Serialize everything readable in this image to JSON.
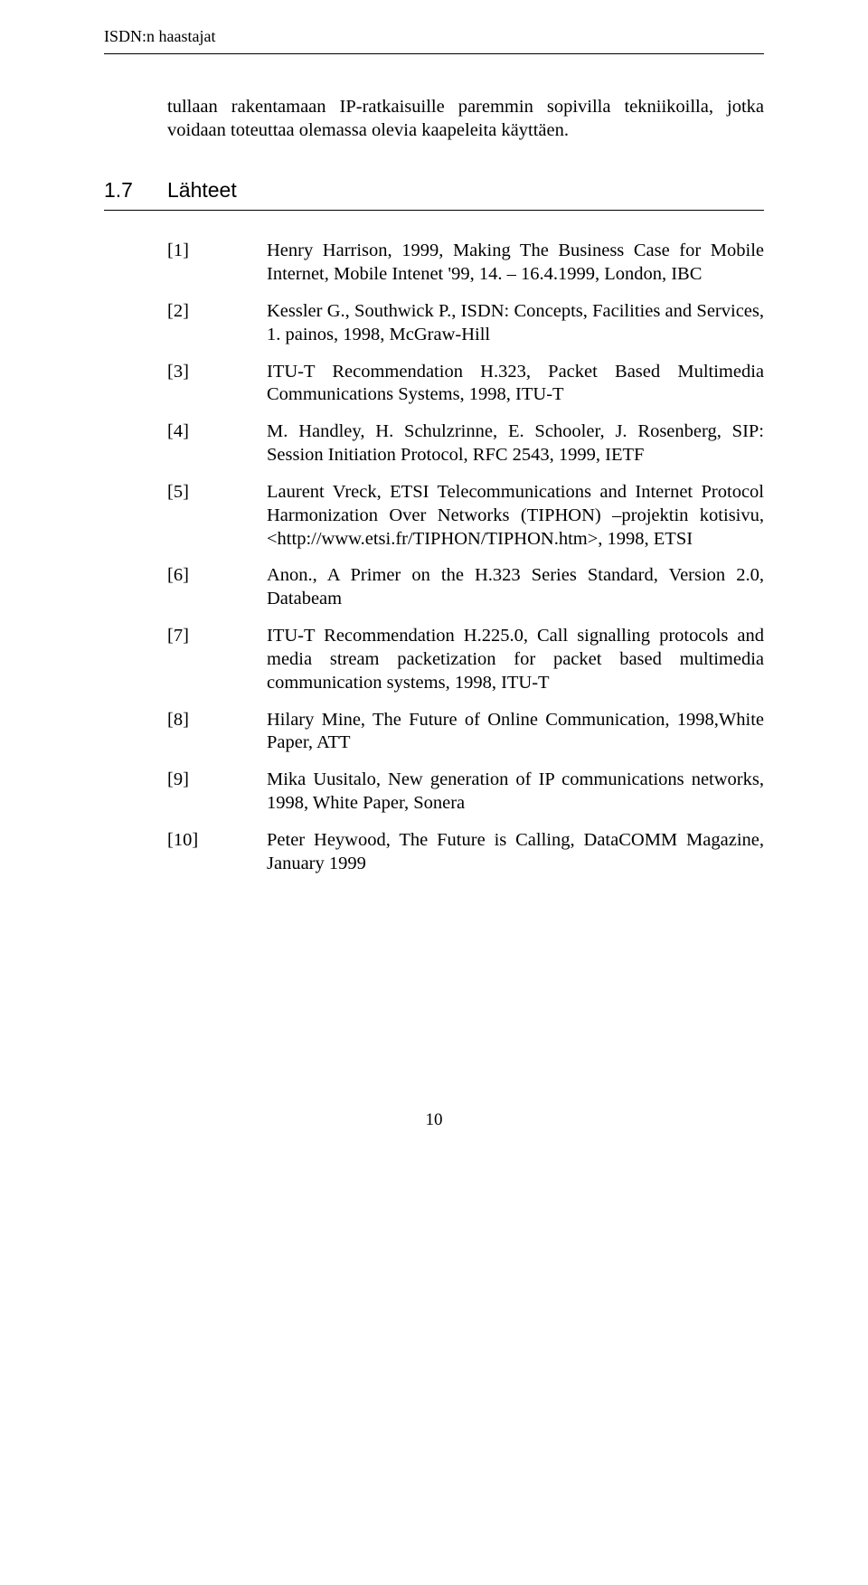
{
  "running_head": "ISDN:n haastajat",
  "intro": "tullaan rakentamaan IP-ratkaisuille paremmin sopivilla tekniikoilla, jotka voidaan toteuttaa olemassa olevia kaapeleita käyttäen.",
  "section": {
    "number": "1.7",
    "title": "Lähteet"
  },
  "references": [
    {
      "key": "[1]",
      "text": "Henry Harrison, 1999, Making The Business Case for Mobile Internet, Mobile Intenet '99, 14. – 16.4.1999, London, IBC"
    },
    {
      "key": "[2]",
      "text": "Kessler G., Southwick P., ISDN: Concepts, Facilities and Services, 1. painos, 1998, McGraw-Hill"
    },
    {
      "key": "[3]",
      "text": "ITU-T Recommendation H.323, Packet Based Multimedia Communications Systems, 1998, ITU-T"
    },
    {
      "key": "[4]",
      "text": "M. Handley, H. Schulzrinne, E. Schooler, J. Rosenberg, SIP: Session Initiation Protocol, RFC 2543, 1999, IETF"
    },
    {
      "key": "[5]",
      "text": "Laurent Vreck, ETSI Telecommunications and Internet Protocol Harmonization Over Networks (TIPHON) –projektin kotisivu, <http://www.etsi.fr/TIPHON/TIPHON.htm>, 1998, ETSI"
    },
    {
      "key": "[6]",
      "text": "Anon., A Primer on the H.323 Series Standard, Version 2.0, Databeam"
    },
    {
      "key": "[7]",
      "text": "ITU-T Recommendation H.225.0, Call signalling protocols and media stream packetization for packet based multimedia communication systems, 1998, ITU-T"
    },
    {
      "key": "[8]",
      "text": "Hilary Mine, The Future of Online Communication, 1998,White Paper, ATT"
    },
    {
      "key": "[9]",
      "text": "Mika Uusitalo, New generation of IP communications networks, 1998, White Paper, Sonera"
    },
    {
      "key": "[10]",
      "text": "Peter Heywood, The Future is Calling, DataCOMM Magazine, January 1999"
    }
  ],
  "page_number": "10"
}
